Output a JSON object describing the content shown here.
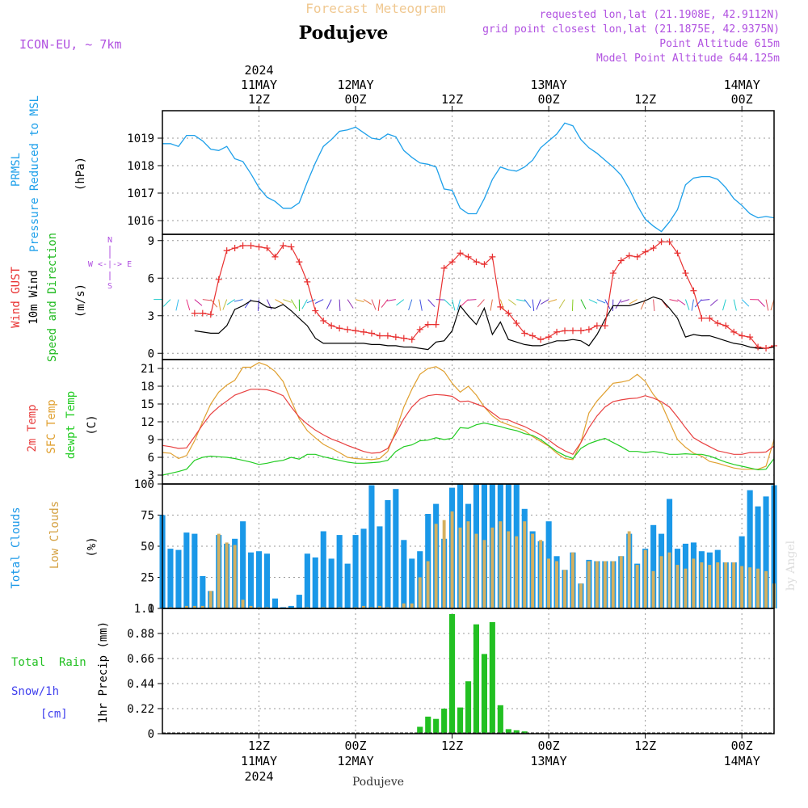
{
  "header": {
    "product": "Forecast Meteogram",
    "location": "Podujeve",
    "model": "ICON-EU, ~ 7km",
    "requested": "requested lon,lat (21.1908E, 42.9112N)",
    "gridpoint": "grid point closest lon,lat (21.1875E, 42.9375N)",
    "point_alt": "Point Altitude 615m",
    "model_alt": "Model Point Altitude 644.125m",
    "footer_location": "Podujeve",
    "watermark": "by Angel"
  },
  "time_axis": {
    "top_ticks": [
      {
        "l1": "2024",
        "l2": "11MAY",
        "l3": "12Z"
      },
      {
        "l1": "",
        "l2": "12MAY",
        "l3": "00Z"
      },
      {
        "l1": "",
        "l2": "",
        "l3": "12Z"
      },
      {
        "l1": "",
        "l2": "13MAY",
        "l3": "00Z"
      },
      {
        "l1": "",
        "l2": "",
        "l3": "12Z"
      },
      {
        "l1": "",
        "l2": "14MAY",
        "l3": "00Z"
      }
    ],
    "bottom_ticks": [
      {
        "l1": "12Z",
        "l2": "11MAY",
        "l3": "2024"
      },
      {
        "l1": "00Z",
        "l2": "12MAY",
        "l3": ""
      },
      {
        "l1": "12Z",
        "l2": "",
        "l3": ""
      },
      {
        "l1": "00Z",
        "l2": "13MAY",
        "l3": ""
      },
      {
        "l1": "12Z",
        "l2": "",
        "l3": ""
      },
      {
        "l1": "00Z",
        "l2": "14MAY",
        "l3": ""
      }
    ]
  },
  "panels": {
    "pressure": {
      "label1": "PRMSL",
      "label2": "Pressure Reduced to MSL",
      "unit": "(hPa)",
      "color": "#1ea0ea"
    },
    "wind": {
      "label_gust": "Wind GUST",
      "label_wind": "10m Wind",
      "label_dir": "Speed and Direction",
      "unit": "(m/s)",
      "compass_n": "N",
      "compass_we": "W <-|-> E",
      "compass_s": "S",
      "gust_color": "#e83030",
      "wind_color": "#000000",
      "dir_color": "#22bb22",
      "compass_color": "#b050e0"
    },
    "temp": {
      "label_2m": "2m Temp",
      "label_sfc": "SFC Temp",
      "label_dew": "dewpt Temp",
      "unit": "(C)",
      "t2m_color": "#e84040",
      "sfc_color": "#e0a030",
      "dew_color": "#22cc22"
    },
    "clouds": {
      "label_total": "Total Clouds",
      "label_low": "Low Clouds",
      "unit": "(%)",
      "total_color": "#1a98e8",
      "low_color": "#d4b060"
    },
    "precip": {
      "label_rain": "Total  Rain",
      "label_snow": "Snow/1h",
      "label_snow_unit": "[cm]",
      "label_precip": "1hr Precip (mm)",
      "rain_color": "#22c022",
      "snow_color": "#4040ee"
    }
  },
  "chart_data": [
    {
      "type": "line",
      "ylabel": "(hPa)",
      "ylim": [
        1015.5,
        1020
      ],
      "yticks": [
        1016,
        1017,
        1018,
        1019
      ],
      "grid": true,
      "x_hours": [
        0,
        1,
        2,
        3,
        4,
        5,
        6,
        7,
        8,
        9,
        10,
        11,
        12,
        13,
        14,
        15,
        16,
        17,
        18,
        19,
        20,
        21,
        22,
        23,
        24,
        25,
        26,
        27,
        28,
        29,
        30,
        31,
        32,
        33,
        34,
        35,
        36,
        37,
        38,
        39,
        40,
        41,
        42,
        43,
        44,
        45,
        46,
        47,
        48,
        49,
        50,
        51,
        52,
        53,
        54,
        55,
        56,
        57,
        58,
        59,
        60,
        61,
        62,
        63,
        64,
        65,
        66,
        67,
        68,
        69,
        70,
        71,
        72,
        73,
        74,
        75,
        76
      ],
      "series": [
        {
          "values": [
            1018.8,
            1018.8,
            1018.7,
            1019.1,
            1019.1,
            1018.9,
            1018.6,
            1018.55,
            1018.7,
            1018.25,
            1018.15,
            1017.7,
            1017.2,
            1016.85,
            1016.7,
            1016.45,
            1016.45,
            1016.65,
            1017.4,
            1018.1,
            1018.7,
            1018.95,
            1019.25,
            1019.3,
            1019.4,
            1019.2,
            1019.0,
            1018.95,
            1019.15,
            1019.05,
            1018.55,
            1018.3,
            1018.1,
            1018.05,
            1017.95,
            1017.15,
            1017.1,
            1016.45,
            1016.25,
            1016.25,
            1016.8,
            1017.5,
            1017.95,
            1017.85,
            1017.8,
            1017.95,
            1018.2,
            1018.65,
            1018.9,
            1019.15,
            1019.55,
            1019.45,
            1018.95,
            1018.65,
            1018.45,
            1018.2,
            1017.95,
            1017.65,
            1017.15,
            1016.55,
            1016.05,
            1015.8,
            1015.6,
            1015.95,
            1016.4,
            1017.3,
            1017.55,
            1017.6,
            1017.6,
            1017.5,
            1017.2,
            1016.8,
            1016.55,
            1016.25,
            1016.1,
            1016.15,
            1016.1
          ]
        }
      ]
    },
    {
      "type": "line",
      "ylabel": "(m/s)",
      "ylim": [
        -0.5,
        9.5
      ],
      "yticks": [
        0,
        3,
        6,
        9
      ],
      "grid": true,
      "x_hours": [
        4,
        5,
        6,
        7,
        8,
        9,
        10,
        11,
        12,
        13,
        14,
        15,
        16,
        17,
        18,
        19,
        20,
        21,
        22,
        23,
        24,
        25,
        26,
        27,
        28,
        29,
        30,
        31,
        32,
        33,
        34,
        35,
        36,
        37,
        38,
        39,
        40,
        41,
        42,
        43,
        44,
        45,
        46,
        47,
        48,
        49,
        50,
        51,
        52,
        53,
        54,
        55,
        56,
        57,
        58,
        59,
        60,
        61,
        62,
        63,
        64,
        65,
        66,
        67,
        68,
        69,
        70,
        71,
        72,
        73,
        74,
        75,
        76
      ],
      "series": [
        {
          "name": "Wind GUST",
          "values": [
            3.2,
            3.2,
            3.1,
            5.9,
            8.2,
            8.4,
            8.6,
            8.6,
            8.5,
            8.4,
            7.7,
            8.6,
            8.5,
            7.3,
            5.7,
            3.4,
            2.6,
            2.2,
            2.0,
            1.9,
            1.8,
            1.7,
            1.6,
            1.4,
            1.4,
            1.3,
            1.2,
            1.1,
            1.9,
            2.3,
            2.3,
            6.8,
            7.3,
            8.0,
            7.7,
            7.3,
            7.1,
            7.7,
            3.7,
            3.2,
            2.4,
            1.6,
            1.4,
            1.1,
            1.3,
            1.7,
            1.8,
            1.8,
            1.8,
            1.9,
            2.2,
            2.2,
            6.4,
            7.4,
            7.8,
            7.7,
            8.1,
            8.4,
            8.9,
            8.9,
            8.0,
            6.4,
            5.0,
            2.8,
            2.8,
            2.4,
            2.2,
            1.7,
            1.4,
            1.3,
            0.5,
            0.4,
            0.6
          ]
        },
        {
          "name": "10m Wind",
          "values": [
            1.8,
            1.7,
            1.6,
            1.6,
            2.2,
            3.5,
            3.8,
            4.2,
            4.1,
            3.7,
            3.6,
            3.9,
            3.4,
            2.8,
            2.2,
            1.2,
            0.8,
            0.8,
            0.8,
            0.8,
            0.8,
            0.8,
            0.7,
            0.7,
            0.6,
            0.6,
            0.5,
            0.5,
            0.4,
            0.3,
            0.9,
            1.0,
            1.8,
            3.8,
            3.0,
            2.3,
            3.6,
            1.5,
            2.5,
            1.1,
            0.9,
            0.7,
            0.6,
            0.6,
            0.8,
            1.0,
            1.0,
            1.1,
            1.0,
            0.6,
            1.5,
            2.7,
            3.8,
            3.8,
            3.8,
            4.0,
            4.2,
            4.5,
            4.3,
            3.6,
            2.8,
            1.3,
            1.5,
            1.4,
            1.4,
            1.2,
            1.0,
            0.8,
            0.7,
            0.5,
            0.4,
            0.4,
            0.5
          ]
        }
      ]
    },
    {
      "type": "line",
      "ylabel": "(C)",
      "ylim": [
        1.5,
        22.5
      ],
      "yticks": [
        3,
        6,
        9,
        12,
        15,
        18,
        21
      ],
      "grid": true,
      "x_hours": [
        0,
        1,
        2,
        3,
        4,
        5,
        6,
        7,
        8,
        9,
        10,
        11,
        12,
        13,
        14,
        15,
        16,
        17,
        18,
        19,
        20,
        21,
        22,
        23,
        24,
        25,
        26,
        27,
        28,
        29,
        30,
        31,
        32,
        33,
        34,
        35,
        36,
        37,
        38,
        39,
        40,
        41,
        42,
        43,
        44,
        45,
        46,
        47,
        48,
        49,
        50,
        51,
        52,
        53,
        54,
        55,
        56,
        57,
        58,
        59,
        60,
        61,
        62,
        63,
        64,
        65,
        66,
        67,
        68,
        69,
        70,
        71,
        72,
        73,
        74,
        75,
        76
      ],
      "series": [
        {
          "name": "2m Temp",
          "values": [
            8.0,
            7.8,
            7.5,
            7.6,
            9.5,
            11.5,
            13.3,
            14.5,
            15.5,
            16.5,
            17.0,
            17.5,
            17.5,
            17.4,
            17.0,
            16.4,
            14.5,
            12.8,
            11.6,
            10.6,
            9.8,
            9.1,
            8.6,
            8.0,
            7.5,
            7.0,
            6.7,
            6.8,
            7.5,
            10.0,
            12.5,
            14.5,
            15.8,
            16.4,
            16.6,
            16.5,
            16.3,
            15.4,
            15.5,
            15.0,
            14.5,
            13.5,
            12.5,
            12.3,
            11.7,
            11.2,
            10.5,
            9.8,
            8.9,
            7.9,
            7.1,
            6.5,
            8.5,
            11.0,
            13.0,
            14.5,
            15.4,
            15.7,
            15.9,
            16.0,
            16.4,
            16.0,
            15.4,
            14.5,
            12.8,
            11.0,
            9.3,
            8.5,
            7.8,
            7.1,
            6.8,
            6.5,
            6.5,
            6.8,
            6.8,
            6.9,
            7.9
          ]
        },
        {
          "name": "SFC Temp",
          "values": [
            6.8,
            6.7,
            5.8,
            6.3,
            8.8,
            12.0,
            15.0,
            17.0,
            18.2,
            19.0,
            21.2,
            21.2,
            22.0,
            21.5,
            20.5,
            18.8,
            15.5,
            12.5,
            10.5,
            9.3,
            8.2,
            7.5,
            6.8,
            6.0,
            5.8,
            5.7,
            5.6,
            5.8,
            7.0,
            10.5,
            14.5,
            17.5,
            20.0,
            21.0,
            21.3,
            20.5,
            18.5,
            17.0,
            18.0,
            16.5,
            14.5,
            13.0,
            12.0,
            11.5,
            11.0,
            10.5,
            9.5,
            8.7,
            7.9,
            6.7,
            5.8,
            5.6,
            8.5,
            13.5,
            15.5,
            17.0,
            18.5,
            18.7,
            19.0,
            20.0,
            18.8,
            16.6,
            15.0,
            12.0,
            9.0,
            7.7,
            6.7,
            6.2,
            5.3,
            5.0,
            4.6,
            4.2,
            4.0,
            4.0,
            4.0,
            4.5,
            9.0
          ]
        },
        {
          "name": "dewpt Temp",
          "values": [
            3.0,
            3.3,
            3.6,
            4.0,
            5.5,
            6.0,
            6.2,
            6.1,
            6.0,
            5.8,
            5.5,
            5.2,
            4.8,
            5.0,
            5.3,
            5.5,
            6.0,
            5.7,
            6.5,
            6.5,
            6.1,
            5.8,
            5.5,
            5.2,
            5.0,
            5.0,
            5.1,
            5.2,
            5.5,
            7.0,
            7.8,
            8.1,
            8.8,
            8.9,
            9.3,
            9.0,
            9.2,
            11.0,
            10.9,
            11.5,
            11.8,
            11.5,
            11.2,
            10.8,
            10.5,
            10.0,
            9.7,
            9.0,
            8.0,
            7.0,
            6.3,
            5.8,
            7.5,
            8.3,
            8.8,
            9.2,
            8.5,
            7.8,
            7.0,
            7.0,
            6.8,
            7.0,
            6.8,
            6.5,
            6.5,
            6.6,
            6.5,
            6.5,
            6.2,
            5.7,
            5.2,
            4.8,
            4.5,
            4.2,
            3.9,
            4.0,
            5.8
          ]
        }
      ]
    },
    {
      "type": "bar",
      "ylabel": "(%)",
      "ylim": [
        0,
        100
      ],
      "yticks": [
        0,
        25,
        50,
        75,
        100
      ],
      "grid": true,
      "x_hours": [
        0,
        1,
        2,
        3,
        4,
        5,
        6,
        7,
        8,
        9,
        10,
        11,
        12,
        13,
        14,
        15,
        16,
        17,
        18,
        19,
        20,
        21,
        22,
        23,
        24,
        25,
        26,
        27,
        28,
        29,
        30,
        31,
        32,
        33,
        34,
        35,
        36,
        37,
        38,
        39,
        40,
        41,
        42,
        43,
        44,
        45,
        46,
        47,
        48,
        49,
        50,
        51,
        52,
        53,
        54,
        55,
        56,
        57,
        58,
        59,
        60,
        61,
        62,
        63,
        64,
        65,
        66,
        67,
        68,
        69,
        70,
        71,
        72,
        73,
        74,
        75,
        76
      ],
      "series": [
        {
          "name": "Total Clouds",
          "values": [
            75,
            48,
            47,
            61,
            60,
            26,
            14,
            59,
            52,
            56,
            70,
            45,
            46,
            44,
            8,
            1,
            2,
            11,
            44,
            41,
            62,
            40,
            59,
            36,
            59,
            64,
            99,
            66,
            87,
            96,
            55,
            40,
            46,
            76,
            84,
            56,
            97,
            100,
            84,
            100,
            100,
            100,
            100,
            100,
            100,
            80,
            62,
            54,
            70,
            42,
            31,
            45,
            20,
            39,
            38,
            38,
            38,
            42,
            60,
            36,
            48,
            67,
            60,
            88,
            48,
            52,
            53,
            46,
            45,
            47,
            37,
            37,
            58,
            95,
            82,
            90,
            99
          ]
        },
        {
          "name": "Low Clouds",
          "values": [
            0,
            1,
            0,
            2,
            2,
            2,
            14,
            60,
            53,
            51,
            7,
            2,
            1,
            1,
            0,
            0,
            0,
            0,
            1,
            0,
            1,
            0,
            1,
            0,
            1,
            2,
            1,
            2,
            1,
            1,
            4,
            4,
            25,
            38,
            68,
            71,
            78,
            65,
            70,
            60,
            55,
            65,
            70,
            62,
            58,
            70,
            60,
            55,
            40,
            38,
            31,
            45,
            20,
            38,
            38,
            38,
            38,
            42,
            62,
            35,
            47,
            30,
            42,
            45,
            35,
            32,
            40,
            37,
            35,
            37,
            37,
            37,
            34,
            33,
            32,
            30,
            20
          ]
        }
      ]
    },
    {
      "type": "bar",
      "ylabel": "1hr Precip (mm)",
      "ylim": [
        0,
        1.1
      ],
      "yticks": [
        0,
        0.22,
        0.44,
        0.66,
        0.88,
        1.1
      ],
      "grid": true,
      "x_hours": [
        32,
        33,
        34,
        35,
        36,
        37,
        38,
        39,
        40,
        41,
        42,
        43,
        44,
        45
      ],
      "series": [
        {
          "name": "Total Rain",
          "values": [
            0.06,
            0.15,
            0.13,
            0.22,
            1.05,
            0.23,
            0.46,
            0.96,
            0.7,
            0.98,
            0.25,
            0.04,
            0.03,
            0.02
          ]
        }
      ]
    }
  ]
}
